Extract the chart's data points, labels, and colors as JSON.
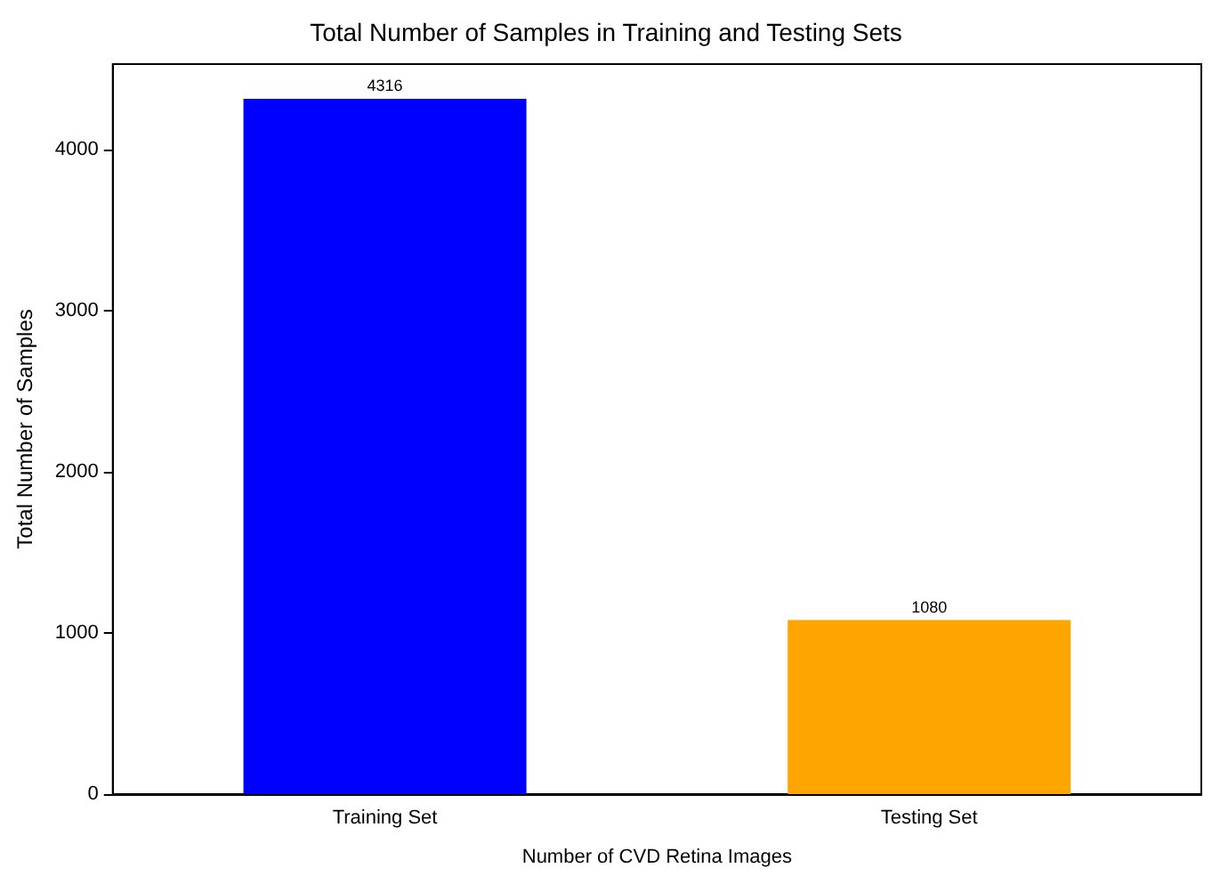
{
  "chart_data": {
    "type": "bar",
    "title": "Total Number of Samples in Training and Testing Sets",
    "xlabel": "Number of CVD Retina Images",
    "ylabel": "Total Number of Samples",
    "categories": [
      "Training Set",
      "Testing Set"
    ],
    "values": [
      4316,
      1080
    ],
    "colors": [
      "#0000ff",
      "#ffa500"
    ],
    "ylim": [
      0,
      4532
    ],
    "yticks": [
      0,
      1000,
      2000,
      3000,
      4000
    ],
    "grid": false,
    "data_labels": true
  }
}
